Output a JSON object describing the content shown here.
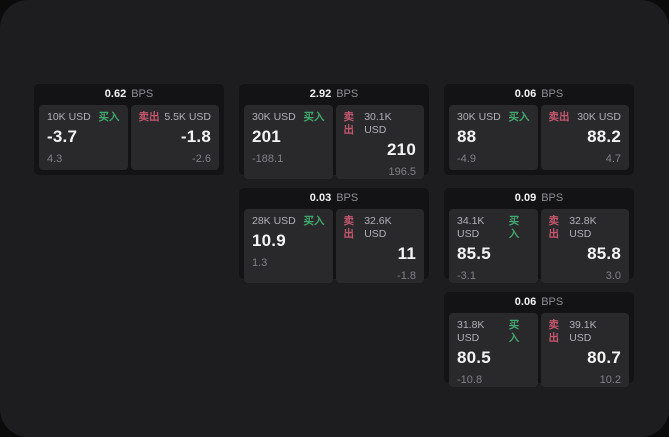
{
  "labels": {
    "buy": "买入",
    "sell": "卖出",
    "bps_unit": "BPS"
  },
  "colors": {
    "outer_background": "#0b0b0c",
    "page_background": "#1d1d1f",
    "card_background": "#131315",
    "panel_background": "#29292c",
    "primary_text": "#f3f3f4",
    "secondary_text": "#b0b0b6",
    "muted_text": "#808086",
    "buy_green": "#42a86e",
    "sell_red": "#c5576d"
  },
  "cards": [
    {
      "row": 1,
      "col": 1,
      "bps": "0.62",
      "buy": {
        "amount": "10K USD",
        "value": "-3.7",
        "delta": "4.3"
      },
      "sell": {
        "amount": "5.5K USD",
        "value": "-1.8",
        "delta": "-2.6"
      }
    },
    {
      "row": 1,
      "col": 2,
      "bps": "2.92",
      "buy": {
        "amount": "30K USD",
        "value": "201",
        "delta": "-188.1"
      },
      "sell": {
        "amount": "30.1K USD",
        "value": "210",
        "delta": "196.5"
      }
    },
    {
      "row": 1,
      "col": 3,
      "bps": "0.06",
      "buy": {
        "amount": "30K USD",
        "value": "88",
        "delta": "-4.9"
      },
      "sell": {
        "amount": "30K USD",
        "value": "88.2",
        "delta": "4.7"
      }
    },
    {
      "row": 2,
      "col": 2,
      "bps": "0.03",
      "buy": {
        "amount": "28K USD",
        "value": "10.9",
        "delta": "1.3"
      },
      "sell": {
        "amount": "32.6K USD",
        "value": "11",
        "delta": "-1.8"
      }
    },
    {
      "row": 2,
      "col": 3,
      "bps": "0.09",
      "buy": {
        "amount": "34.1K USD",
        "value": "85.5",
        "delta": "-3.1"
      },
      "sell": {
        "amount": "32.8K USD",
        "value": "85.8",
        "delta": "3.0"
      }
    },
    {
      "row": 3,
      "col": 3,
      "bps": "0.06",
      "buy": {
        "amount": "31.8K USD",
        "value": "80.5",
        "delta": "-10.8"
      },
      "sell": {
        "amount": "39.1K USD",
        "value": "80.7",
        "delta": "10.2"
      }
    }
  ]
}
